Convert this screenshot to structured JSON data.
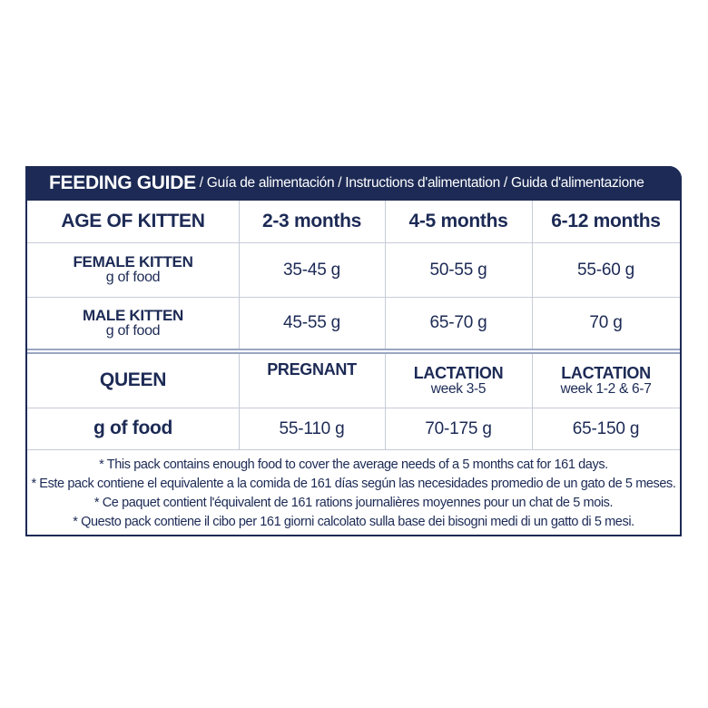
{
  "header": {
    "title": "FEEDING GUIDE",
    "subtitle": "/ Guía de alimentación / Instructions d'alimentation / Guida d'alimentazione"
  },
  "kitten_table": {
    "header": [
      "AGE OF KITTEN",
      "2-3 months",
      "4-5 months",
      "6-12 months"
    ],
    "rows": [
      {
        "label": "FEMALE KITTEN",
        "sublabel": "g of food",
        "values": [
          "35-45 g",
          "50-55 g",
          "55-60 g"
        ]
      },
      {
        "label": "MALE KITTEN",
        "sublabel": "g of food",
        "values": [
          "45-55 g",
          "65-70 g",
          "70 g"
        ]
      }
    ]
  },
  "queen_table": {
    "label": "QUEEN",
    "columns": [
      {
        "title": "PREGNANT",
        "sub": ""
      },
      {
        "title": "LACTATION",
        "sub": "week 3-5"
      },
      {
        "title": "LACTATION",
        "sub": "week 1-2 & 6-7"
      }
    ],
    "food_label": "g of food",
    "values": [
      "55-110 g",
      "70-175 g",
      "65-150 g"
    ]
  },
  "notes": [
    "* This pack contains enough food to cover the average needs of a 5 months cat for 161 days.",
    "* Este pack contiene el equivalente a la comida de 161 días según las necesidades promedio de un gato de 5 meses.",
    "* Ce paquet contient l'équivalent de 161 rations journalières moyennes pour un chat de 5 mois.",
    "* Questo pack contiene il cibo per 161 giorni calcolato sulla base dei bisogni medi di un gatto di 5 mesi."
  ],
  "colors": {
    "navy": "#1c2a55",
    "grid": "#c7ccd8"
  }
}
